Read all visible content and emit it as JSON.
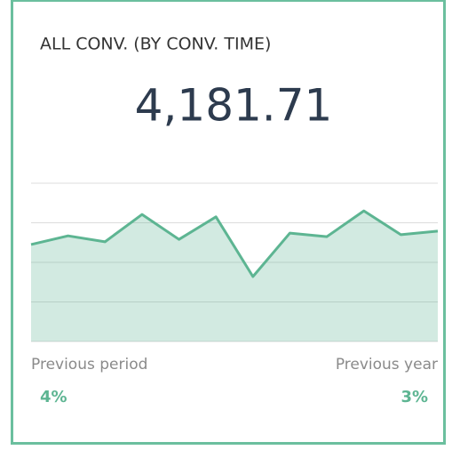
{
  "header": {
    "title": "ALL CONV. (BY CONV. TIME)",
    "value": "4,181.71"
  },
  "chart_data": {
    "type": "area",
    "values": [
      2.45,
      2.67,
      2.52,
      3.21,
      2.58,
      3.15,
      1.64,
      2.74,
      2.65,
      3.3,
      2.7,
      2.79
    ],
    "ylim": [
      0,
      4
    ],
    "yticks": [
      0,
      1,
      2,
      3,
      4
    ],
    "grid": true,
    "color": "#5db592"
  },
  "comparisons": [
    {
      "label": "Previous period",
      "value": "4%"
    },
    {
      "label": "Previous year",
      "value": "3%"
    }
  ]
}
